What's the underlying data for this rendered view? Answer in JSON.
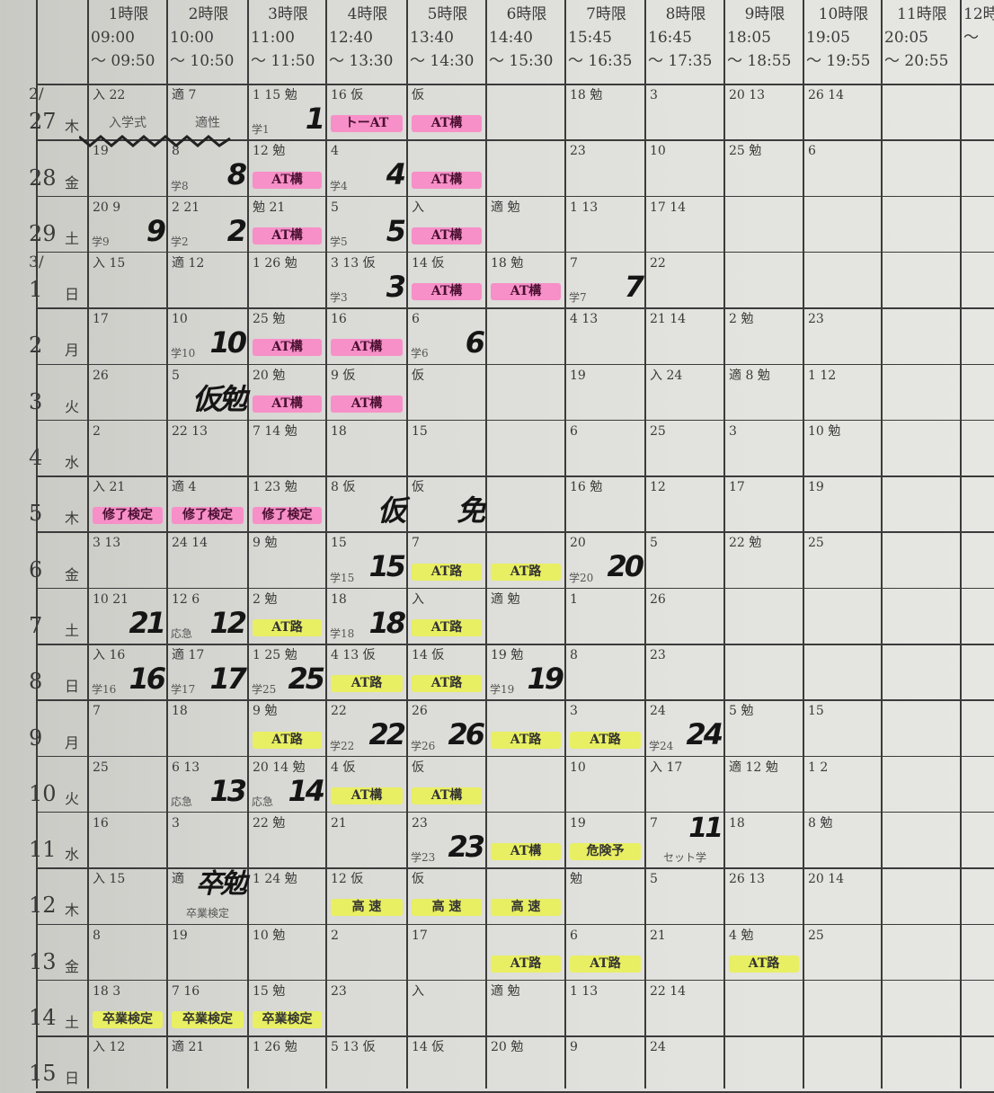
{
  "periods": [
    {
      "label": "1時限",
      "start": "09:00",
      "end": "〜 09:50"
    },
    {
      "label": "2時限",
      "start": "10:00",
      "end": "〜 10:50"
    },
    {
      "label": "3時限",
      "start": "11:00",
      "end": "〜 11:50"
    },
    {
      "label": "4時限",
      "start": "12:40",
      "end": "〜 13:30"
    },
    {
      "label": "5時限",
      "start": "13:40",
      "end": "〜 14:30"
    },
    {
      "label": "6時限",
      "start": "14:40",
      "end": "〜 15:30"
    },
    {
      "label": "7時限",
      "start": "15:45",
      "end": "〜 16:35"
    },
    {
      "label": "8時限",
      "start": "16:45",
      "end": "〜 17:35"
    },
    {
      "label": "9時限",
      "start": "18:05",
      "end": "〜 18:55"
    },
    {
      "label": "10時限",
      "start": "19:05",
      "end": "〜 19:55"
    },
    {
      "label": "11時限",
      "start": "20:05",
      "end": "〜 20:55"
    },
    {
      "label": "12時",
      "start": "",
      "end": "〜"
    }
  ],
  "highlight_colors": {
    "pink": "#f78fc8",
    "yellow": "#e8ef62"
  },
  "rows": [
    {
      "month": "2/",
      "day": "27",
      "weekday": "木",
      "cells": [
        [
          "入 22",
          "入学式",
          "plain",
          ""
        ],
        [
          "適 7",
          "適性",
          "plain",
          ""
        ],
        [
          "1 15 勉",
          "学1",
          "plain",
          "1"
        ],
        [
          "16 仮",
          "トーAT",
          "pink",
          ""
        ],
        [
          "仮",
          "AT構",
          "pink",
          ""
        ],
        [
          "",
          "",
          "",
          ""
        ],
        [
          "18 勉",
          "",
          "",
          ""
        ],
        [
          "3",
          "",
          "",
          ""
        ],
        [
          "20 13",
          "",
          "",
          ""
        ],
        [
          "26 14",
          "",
          "",
          ""
        ]
      ]
    },
    {
      "month": "",
      "day": "28",
      "weekday": "金",
      "cells": [
        [
          "19",
          "",
          "",
          ""
        ],
        [
          "8",
          "学8",
          "plain",
          "8"
        ],
        [
          "12 勉",
          "AT構",
          "pink",
          ""
        ],
        [
          "4",
          "学4",
          "plain",
          "4"
        ],
        [
          "",
          "AT構",
          "pink",
          ""
        ],
        [
          "",
          "",
          "",
          ""
        ],
        [
          "23",
          "",
          "",
          ""
        ],
        [
          "10",
          "",
          "",
          ""
        ],
        [
          "25 勉",
          "",
          "",
          ""
        ],
        [
          "6",
          "",
          "",
          ""
        ]
      ]
    },
    {
      "month": "",
      "day": "29",
      "weekday": "土",
      "cells": [
        [
          "20 9",
          "学9",
          "plain",
          "9"
        ],
        [
          "2 21",
          "学2",
          "plain",
          "2"
        ],
        [
          "勉 21",
          "AT構",
          "pink",
          ""
        ],
        [
          "5",
          "学5",
          "plain",
          "5"
        ],
        [
          "入",
          "AT構",
          "pink",
          ""
        ],
        [
          "適 勉",
          "",
          "",
          ""
        ],
        [
          "1 13",
          "",
          "",
          ""
        ],
        [
          "17 14",
          "",
          "",
          ""
        ],
        [
          "",
          "",
          "",
          ""
        ],
        [
          "",
          "",
          "",
          ""
        ]
      ]
    },
    {
      "month": "3/",
      "day": "1",
      "weekday": "日",
      "cells": [
        [
          "入 15",
          "",
          "",
          ""
        ],
        [
          "適 12",
          "",
          "",
          ""
        ],
        [
          "1 26 勉",
          "",
          "",
          ""
        ],
        [
          "3 13 仮",
          "学3",
          "plain",
          "3"
        ],
        [
          "14 仮",
          "AT構",
          "pink",
          ""
        ],
        [
          "18 勉",
          "AT構",
          "pink",
          ""
        ],
        [
          "7",
          "学7",
          "plain",
          "7"
        ],
        [
          "22",
          "",
          "",
          ""
        ],
        [
          "",
          "",
          "",
          ""
        ],
        [
          "",
          "",
          "",
          ""
        ]
      ]
    },
    {
      "month": "",
      "day": "2",
      "weekday": "月",
      "cells": [
        [
          "17",
          "",
          "",
          ""
        ],
        [
          "10",
          "学10",
          "plain",
          "10"
        ],
        [
          "25 勉",
          "AT構",
          "pink",
          ""
        ],
        [
          "16",
          "AT構",
          "pink",
          ""
        ],
        [
          "6",
          "学6",
          "plain",
          "6"
        ],
        [
          "",
          "",
          "",
          ""
        ],
        [
          "4 13",
          "",
          "",
          ""
        ],
        [
          "21 14",
          "",
          "",
          ""
        ],
        [
          "2 勉",
          "",
          "",
          ""
        ],
        [
          "23",
          "",
          "",
          ""
        ]
      ]
    },
    {
      "month": "",
      "day": "3",
      "weekday": "火",
      "cells": [
        [
          "26",
          "",
          "",
          ""
        ],
        [
          "5",
          "",
          "",
          "仮勉"
        ],
        [
          "20 勉",
          "AT構",
          "pink",
          ""
        ],
        [
          "9 仮",
          "AT構",
          "pink",
          ""
        ],
        [
          "仮",
          "",
          "",
          ""
        ],
        [
          "",
          "",
          "",
          ""
        ],
        [
          "19",
          "",
          "",
          ""
        ],
        [
          "入 24",
          "",
          "",
          ""
        ],
        [
          "適 8 勉",
          "",
          "",
          ""
        ],
        [
          "1 12",
          "",
          "",
          ""
        ]
      ]
    },
    {
      "month": "",
      "day": "4",
      "weekday": "水",
      "cells": [
        [
          "2",
          "",
          "",
          ""
        ],
        [
          "22 13",
          "",
          "",
          ""
        ],
        [
          "7 14 勉",
          "",
          "",
          ""
        ],
        [
          "18",
          "",
          "",
          ""
        ],
        [
          "15",
          "",
          "",
          ""
        ],
        [
          "",
          "",
          "",
          ""
        ],
        [
          "6",
          "",
          "",
          ""
        ],
        [
          "25",
          "",
          "",
          ""
        ],
        [
          "3",
          "",
          "",
          ""
        ],
        [
          "10 勉",
          "",
          "",
          ""
        ]
      ]
    },
    {
      "month": "",
      "day": "5",
      "weekday": "木",
      "cells": [
        [
          "入 21",
          "修了検定",
          "pink",
          ""
        ],
        [
          "適 4",
          "修了検定",
          "pink",
          ""
        ],
        [
          "1 23 勉",
          "修了検定",
          "pink",
          ""
        ],
        [
          "8 仮",
          "",
          "",
          "仮"
        ],
        [
          "仮",
          "",
          "",
          "免"
        ],
        [
          "",
          "",
          "",
          ""
        ],
        [
          "16 勉",
          "",
          "",
          ""
        ],
        [
          "12",
          "",
          "",
          ""
        ],
        [
          "17",
          "",
          "",
          ""
        ],
        [
          "19",
          "",
          "",
          ""
        ]
      ]
    },
    {
      "month": "",
      "day": "6",
      "weekday": "金",
      "cells": [
        [
          "3 13",
          "",
          "",
          ""
        ],
        [
          "24 14",
          "",
          "",
          ""
        ],
        [
          "9 勉",
          "",
          "",
          ""
        ],
        [
          "15",
          "学15",
          "plain",
          "15"
        ],
        [
          "7",
          "AT路",
          "yellow",
          ""
        ],
        [
          "",
          "AT路",
          "yellow",
          ""
        ],
        [
          "20",
          "学20",
          "plain",
          "20"
        ],
        [
          "5",
          "",
          "",
          ""
        ],
        [
          "22 勉",
          "",
          "",
          ""
        ],
        [
          "25",
          "",
          "",
          ""
        ]
      ]
    },
    {
      "month": "",
      "day": "7",
      "weekday": "土",
      "cells": [
        [
          "10 21",
          "",
          "",
          "21"
        ],
        [
          "12 6",
          "応急",
          "plain",
          "12"
        ],
        [
          "2 勉",
          "AT路",
          "yellow",
          ""
        ],
        [
          "18",
          "学18",
          "plain",
          "18"
        ],
        [
          "入",
          "AT路",
          "yellow",
          ""
        ],
        [
          "適 勉",
          "",
          "",
          ""
        ],
        [
          "1",
          "",
          "",
          ""
        ],
        [
          "26",
          "",
          "",
          ""
        ],
        [
          "",
          "",
          "",
          ""
        ],
        [
          "",
          "",
          "",
          ""
        ]
      ]
    },
    {
      "month": "",
      "day": "8",
      "weekday": "日",
      "cells": [
        [
          "入 16",
          "学16",
          "plain",
          "16"
        ],
        [
          "適 17",
          "学17",
          "plain",
          "17"
        ],
        [
          "1 25 勉",
          "学25",
          "plain",
          "25"
        ],
        [
          "4 13 仮",
          "AT路",
          "yellow",
          ""
        ],
        [
          "14 仮",
          "AT路",
          "yellow",
          ""
        ],
        [
          "19 勉",
          "学19",
          "plain",
          "19"
        ],
        [
          "8",
          "",
          "",
          ""
        ],
        [
          "23",
          "",
          "",
          ""
        ],
        [
          "",
          "",
          "",
          ""
        ],
        [
          "",
          "",
          "",
          ""
        ]
      ]
    },
    {
      "month": "",
      "day": "9",
      "weekday": "月",
      "cells": [
        [
          "7",
          "",
          "",
          ""
        ],
        [
          "18",
          "",
          "",
          ""
        ],
        [
          "9 勉",
          "AT路",
          "yellow",
          ""
        ],
        [
          "22",
          "学22",
          "plain",
          "22"
        ],
        [
          "26",
          "学26",
          "plain",
          "26"
        ],
        [
          "",
          "AT路",
          "yellow",
          ""
        ],
        [
          "3",
          "AT路",
          "yellow",
          ""
        ],
        [
          "24",
          "学24",
          "plain",
          "24"
        ],
        [
          "5 勉",
          "",
          "",
          ""
        ],
        [
          "15",
          "",
          "",
          ""
        ]
      ]
    },
    {
      "month": "",
      "day": "10",
      "weekday": "火",
      "cells": [
        [
          "25",
          "",
          "",
          ""
        ],
        [
          "6 13",
          "応急",
          "plain",
          "13"
        ],
        [
          "20 14 勉",
          "応急",
          "plain",
          "14"
        ],
        [
          "4 仮",
          "AT構",
          "yellow",
          ""
        ],
        [
          "仮",
          "AT構",
          "yellow",
          ""
        ],
        [
          "",
          "",
          "",
          ""
        ],
        [
          "10",
          "",
          "",
          ""
        ],
        [
          "入 17",
          "",
          "",
          ""
        ],
        [
          "適 12 勉",
          "",
          "",
          ""
        ],
        [
          "1 2",
          "",
          "",
          ""
        ]
      ]
    },
    {
      "month": "",
      "day": "11",
      "weekday": "水",
      "cells": [
        [
          "16",
          "",
          "",
          ""
        ],
        [
          "3",
          "",
          "",
          ""
        ],
        [
          "22 勉",
          "",
          "",
          ""
        ],
        [
          "21",
          "",
          "",
          ""
        ],
        [
          "23",
          "学23",
          "plain",
          "23"
        ],
        [
          "",
          "AT構",
          "yellow",
          ""
        ],
        [
          "19",
          "危険予",
          "yellow",
          ""
        ],
        [
          "7",
          "セット学",
          "plain",
          "11"
        ],
        [
          "18",
          "",
          "",
          ""
        ],
        [
          "8 勉",
          "",
          "",
          ""
        ]
      ]
    },
    {
      "month": "",
      "day": "12",
      "weekday": "木",
      "cells": [
        [
          "入 15",
          "",
          "",
          ""
        ],
        [
          "適",
          "卒業検定",
          "plain",
          "卒勉"
        ],
        [
          "1 24 勉",
          "",
          "",
          ""
        ],
        [
          "12 仮",
          "高 速",
          "yellow",
          ""
        ],
        [
          "仮",
          "高 速",
          "yellow",
          ""
        ],
        [
          "",
          "高 速",
          "yellow",
          ""
        ],
        [
          "勉",
          "",
          "",
          ""
        ],
        [
          "5",
          "",
          "",
          ""
        ],
        [
          "26 13",
          "",
          "",
          ""
        ],
        [
          "20 14",
          "",
          "",
          ""
        ]
      ]
    },
    {
      "month": "",
      "day": "13",
      "weekday": "金",
      "cells": [
        [
          "8",
          "",
          "",
          ""
        ],
        [
          "19",
          "",
          "",
          ""
        ],
        [
          "10 勉",
          "",
          "",
          ""
        ],
        [
          "2",
          "",
          "",
          ""
        ],
        [
          "17",
          "",
          "",
          ""
        ],
        [
          "",
          "AT路",
          "yellow",
          ""
        ],
        [
          "6",
          "AT路",
          "yellow",
          ""
        ],
        [
          "21",
          "",
          "",
          ""
        ],
        [
          "4 勉",
          "AT路",
          "yellow",
          ""
        ],
        [
          "25",
          "",
          "",
          ""
        ]
      ]
    },
    {
      "month": "",
      "day": "14",
      "weekday": "土",
      "cells": [
        [
          "18 3",
          "卒業検定",
          "yellow",
          ""
        ],
        [
          "7 16",
          "卒業検定",
          "yellow",
          ""
        ],
        [
          "15 勉",
          "卒業検定",
          "yellow",
          ""
        ],
        [
          "23",
          "",
          "",
          ""
        ],
        [
          "入",
          "",
          "",
          ""
        ],
        [
          "適 勉",
          "",
          "",
          ""
        ],
        [
          "1 13",
          "",
          "",
          ""
        ],
        [
          "22 14",
          "",
          "",
          ""
        ],
        [
          "",
          "",
          "",
          ""
        ],
        [
          "",
          "",
          "",
          ""
        ]
      ]
    },
    {
      "month": "",
      "day": "15",
      "weekday": "日",
      "cells": [
        [
          "入 12",
          "",
          "",
          ""
        ],
        [
          "適 21",
          "",
          "",
          ""
        ],
        [
          "1 26 勉",
          "",
          "",
          ""
        ],
        [
          "5 13 仮",
          "",
          "",
          ""
        ],
        [
          "14 仮",
          "",
          "",
          ""
        ],
        [
          "20 勉",
          "",
          "",
          ""
        ],
        [
          "9",
          "",
          "",
          ""
        ],
        [
          "24",
          "",
          "",
          ""
        ],
        [
          "",
          "",
          "",
          ""
        ],
        [
          "",
          "",
          "",
          ""
        ]
      ]
    }
  ]
}
